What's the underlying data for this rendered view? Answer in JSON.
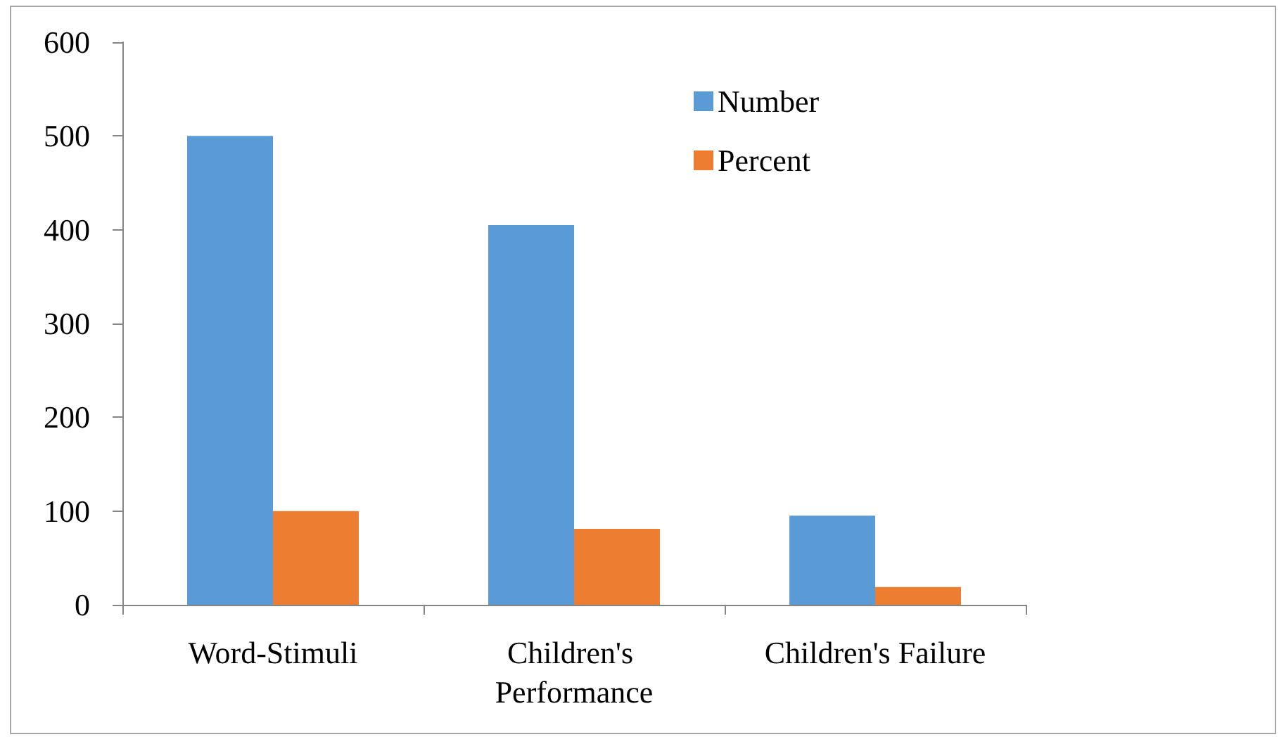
{
  "chart_data": {
    "type": "bar",
    "categories": [
      "Word-Stimuli",
      "Children's Performance",
      "Children's Failure"
    ],
    "series": [
      {
        "name": "Number",
        "color": "#5b9bd5",
        "values": [
          500,
          405,
          95
        ]
      },
      {
        "name": "Percent",
        "color": "#ed7d31",
        "values": [
          100,
          81,
          19
        ]
      }
    ],
    "ylim": [
      0,
      600
    ],
    "yticks": [
      0,
      100,
      200,
      300,
      400,
      500,
      600
    ],
    "grid": false,
    "legend": "top right"
  }
}
